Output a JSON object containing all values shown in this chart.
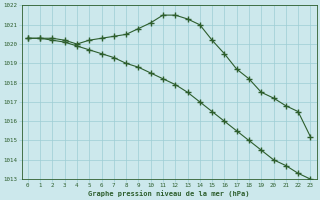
{
  "line1": [
    1020.3,
    1020.3,
    1020.3,
    1020.2,
    1020.0,
    1020.2,
    1020.3,
    1020.4,
    1020.5,
    1020.8,
    1021.1,
    1021.5,
    1021.5,
    1021.3,
    1021.0,
    1020.2,
    1019.5,
    1018.7,
    1018.2,
    1017.5,
    1017.2,
    1016.8,
    1016.5,
    1015.2
  ],
  "line2": [
    1020.3,
    1020.3,
    1020.2,
    1020.1,
    1019.9,
    1019.7,
    1019.5,
    1019.3,
    1019.0,
    1018.8,
    1018.5,
    1018.2,
    1017.9,
    1017.5,
    1017.0,
    1016.5,
    1016.0,
    1015.5,
    1015.0,
    1014.5,
    1014.0,
    1013.7,
    1013.3,
    1013.0
  ],
  "hours": [
    0,
    1,
    2,
    3,
    4,
    5,
    6,
    7,
    8,
    9,
    10,
    11,
    12,
    13,
    14,
    15,
    16,
    17,
    18,
    19,
    20,
    21,
    22,
    23
  ],
  "ylim_min": 1013,
  "ylim_max": 1022,
  "yticks": [
    1013,
    1014,
    1015,
    1016,
    1017,
    1018,
    1019,
    1020,
    1021,
    1022
  ],
  "line_color": "#2d5e2d",
  "bg_color": "#cce8ec",
  "grid_color": "#9ecdd4",
  "xlabel": "Graphe pression niveau de la mer (hPa)",
  "label_color": "#2d5e2d"
}
